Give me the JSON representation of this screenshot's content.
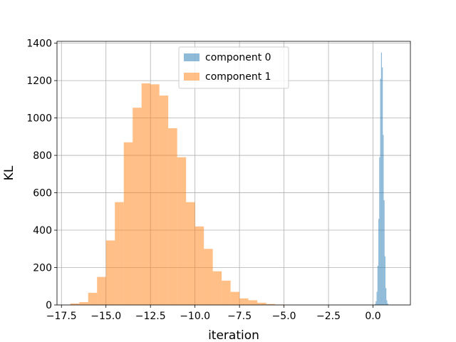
{
  "chart_data": {
    "type": "bar",
    "title": "",
    "xlabel": "iteration",
    "ylabel": "KL",
    "xlim": [
      -17.75,
      2.1
    ],
    "ylim": [
      0,
      1410
    ],
    "xticks": [
      -17.5,
      -15.0,
      -12.5,
      -10.0,
      -7.5,
      -5.0,
      -2.5,
      0.0
    ],
    "xtick_labels": [
      "−17.5",
      "−15.0",
      "−12.5",
      "−10.0",
      "−7.5",
      "−5.0",
      "−2.5",
      "0.0"
    ],
    "yticks": [
      0,
      200,
      400,
      600,
      800,
      1000,
      1200,
      1400
    ],
    "ytick_labels": [
      "0",
      "200",
      "400",
      "600",
      "800",
      "1000",
      "1200",
      "1400"
    ],
    "grid": true,
    "legend_position": "upper center",
    "series": [
      {
        "name": "component 0",
        "color": "#1f77b4",
        "alpha": 0.5,
        "bin_start": 0.1,
        "bin_width": 0.05,
        "values": [
          5,
          20,
          70,
          210,
          460,
          790,
          1210,
          1350,
          1270,
          910,
          560,
          260,
          90,
          25,
          8
        ]
      },
      {
        "name": "component 1",
        "color": "#ff7f0e",
        "alpha": 0.5,
        "bin_start": -17.0,
        "bin_width": 0.5,
        "values": [
          8,
          15,
          65,
          150,
          345,
          550,
          870,
          1055,
          1185,
          1180,
          1120,
          945,
          790,
          550,
          420,
          300,
          180,
          130,
          70,
          35,
          25,
          12,
          5,
          2,
          1
        ]
      }
    ]
  }
}
